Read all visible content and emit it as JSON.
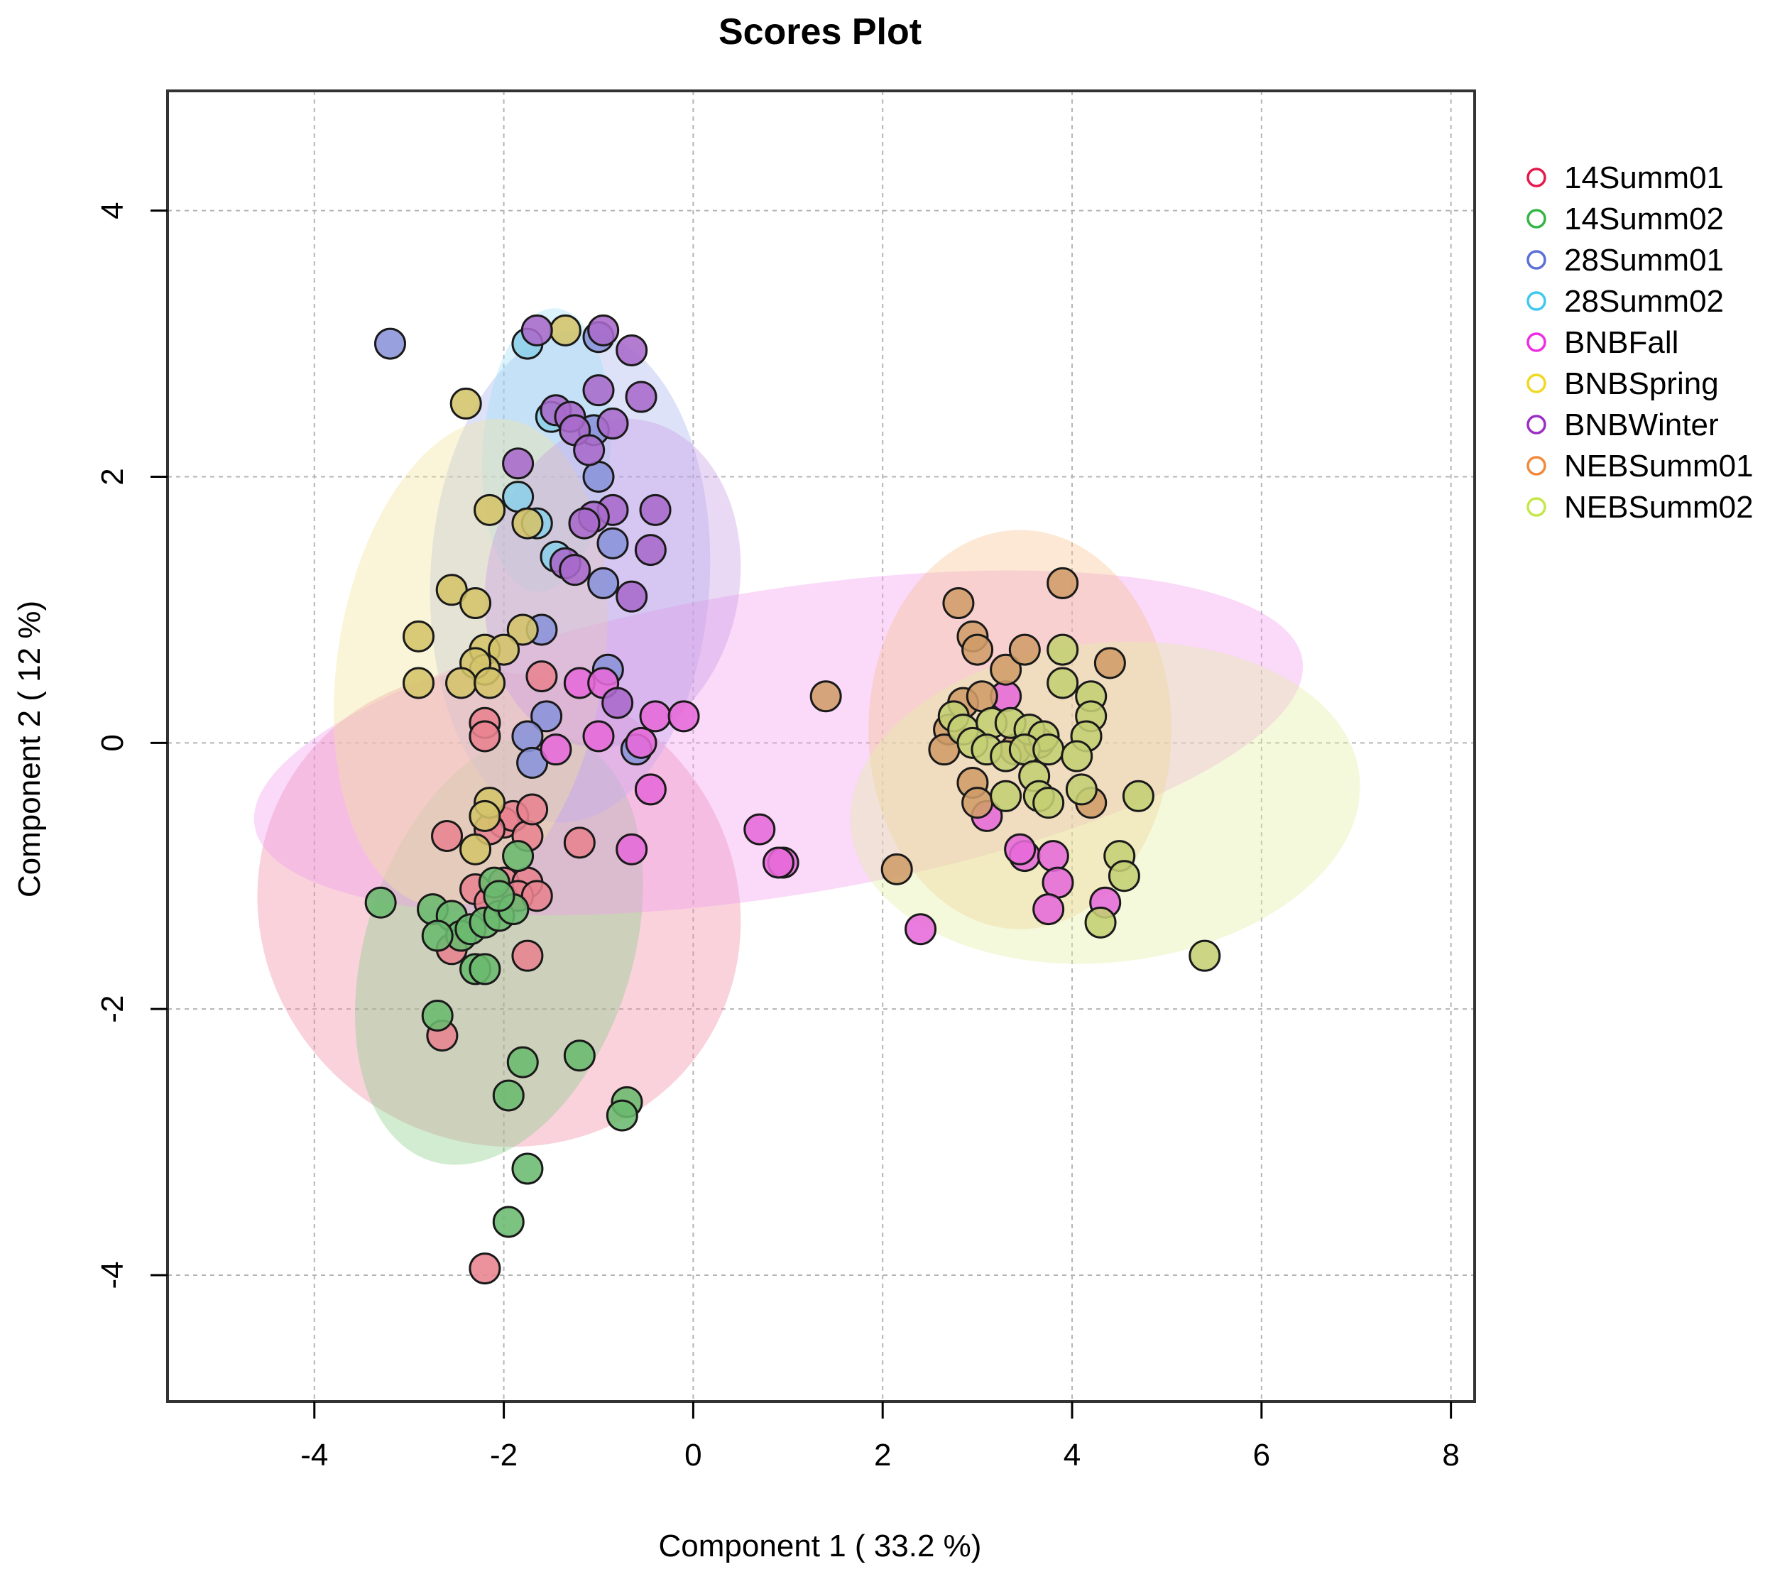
{
  "chart_data": {
    "type": "scatter",
    "title": "Scores Plot",
    "xlabel": "Component 1 ( 33.2 %)",
    "ylabel": "Component 2 ( 12 %)",
    "xlim": [
      -5.55,
      8.25
    ],
    "ylim": [
      -4.95,
      4.9
    ],
    "x_ticks": [
      -4,
      -2,
      0,
      2,
      4,
      6,
      8
    ],
    "y_ticks": [
      -4,
      -2,
      0,
      2,
      4
    ],
    "x_tick_labels": [
      "-4",
      "-2",
      "0",
      "2",
      "4",
      "6",
      "8"
    ],
    "y_tick_labels": [
      "-4",
      "-2",
      "0",
      "2",
      "4"
    ],
    "grid": true,
    "legend_position": "right",
    "legend": [
      {
        "name": "14Summ01",
        "color": "#e41a4c"
      },
      {
        "name": "14Summ02",
        "color": "#33b544"
      },
      {
        "name": "28Summ01",
        "color": "#5c6fd6"
      },
      {
        "name": "28Summ02",
        "color": "#40c8f0"
      },
      {
        "name": "BNBFall",
        "color": "#ee2ee0"
      },
      {
        "name": "BNBSpring",
        "color": "#f0d823"
      },
      {
        "name": "BNBWinter",
        "color": "#9b2ec4"
      },
      {
        "name": "NEBSumm01",
        "color": "#f08a3c"
      },
      {
        "name": "NEBSumm02",
        "color": "#c6e64a"
      }
    ],
    "ellipses": [
      {
        "group": "14Summ01",
        "cx": -2.05,
        "cy": -1.25,
        "rx": 2.6,
        "ry": 1.75,
        "angle": 36,
        "color": "#f08aa0"
      },
      {
        "group": "14Summ02",
        "cx": -2.05,
        "cy": -1.55,
        "rx": 2.35,
        "ry": 1.0,
        "angle": -72,
        "color": "#86cc86"
      },
      {
        "group": "28Summ01",
        "cx": -1.3,
        "cy": 1.25,
        "rx": 2.6,
        "ry": 1.05,
        "angle": -87,
        "color": "#a9b3ef"
      },
      {
        "group": "28Summ02",
        "cx": -1.55,
        "cy": 2.2,
        "rx": 1.5,
        "ry": 0.48,
        "angle": -86,
        "color": "#9ee0f7"
      },
      {
        "group": "BNBFall",
        "cx": 0.9,
        "cy": 0.0,
        "rx": 5.6,
        "ry": 1.15,
        "angle": -9,
        "color": "#f39af0"
      },
      {
        "group": "BNBSpring",
        "cx": -2.35,
        "cy": 0.6,
        "rx": 2.6,
        "ry": 1.0,
        "angle": -81,
        "color": "#f3e59a"
      },
      {
        "group": "BNBWinter",
        "cx": -0.85,
        "cy": 1.2,
        "rx": 1.75,
        "ry": 0.95,
        "angle": -79,
        "color": "#c79ae6"
      },
      {
        "group": "NEBSumm01",
        "cx": 3.45,
        "cy": 0.1,
        "rx": 1.6,
        "ry": 1.5,
        "angle": 0,
        "color": "#f6c28e"
      },
      {
        "group": "NEBSumm02",
        "cx": 4.35,
        "cy": -0.45,
        "rx": 2.7,
        "ry": 1.2,
        "angle": -6,
        "color": "#e2f0a4"
      }
    ],
    "series": [
      {
        "name": "14Summ01",
        "color": "#e8838f",
        "points": [
          [
            -1.6,
            0.5
          ],
          [
            -2.2,
            0.15
          ],
          [
            -2.2,
            0.05
          ],
          [
            -2.0,
            -0.6
          ],
          [
            -1.9,
            -0.55
          ],
          [
            -2.15,
            -0.65
          ],
          [
            -1.75,
            -0.7
          ],
          [
            -1.7,
            -0.5
          ],
          [
            -2.6,
            -0.7
          ],
          [
            -1.2,
            -0.75
          ],
          [
            -2.3,
            -1.1
          ],
          [
            -2.0,
            -1.05
          ],
          [
            -1.75,
            -1.05
          ],
          [
            -1.85,
            -1.15
          ],
          [
            -2.15,
            -1.2
          ],
          [
            -1.65,
            -1.15
          ],
          [
            -2.55,
            -1.55
          ],
          [
            -1.75,
            -1.6
          ],
          [
            -2.65,
            -2.2
          ],
          [
            -2.2,
            -3.95
          ]
        ]
      },
      {
        "name": "14Summ02",
        "color": "#6ab96e",
        "points": [
          [
            -3.3,
            -1.2
          ],
          [
            -2.75,
            -1.25
          ],
          [
            -2.55,
            -1.3
          ],
          [
            -2.45,
            -1.45
          ],
          [
            -2.7,
            -1.45
          ],
          [
            -2.35,
            -1.4
          ],
          [
            -2.2,
            -1.35
          ],
          [
            -2.05,
            -1.3
          ],
          [
            -1.9,
            -1.25
          ],
          [
            -2.1,
            -1.05
          ],
          [
            -1.85,
            -0.85
          ],
          [
            -2.05,
            -1.15
          ],
          [
            -2.3,
            -1.7
          ],
          [
            -2.2,
            -1.7
          ],
          [
            -2.7,
            -2.05
          ],
          [
            -1.8,
            -2.4
          ],
          [
            -1.2,
            -2.35
          ],
          [
            -1.95,
            -2.65
          ],
          [
            -0.7,
            -2.7
          ],
          [
            -0.75,
            -2.8
          ],
          [
            -1.75,
            -3.2
          ],
          [
            -1.95,
            -3.6
          ]
        ]
      },
      {
        "name": "28Summ01",
        "color": "#8a93d9",
        "points": [
          [
            -3.2,
            3.0
          ],
          [
            -1.0,
            3.05
          ],
          [
            -1.05,
            2.35
          ],
          [
            -1.0,
            2.0
          ],
          [
            -0.85,
            1.5
          ],
          [
            -0.95,
            1.2
          ],
          [
            -1.6,
            0.85
          ],
          [
            -0.9,
            0.55
          ],
          [
            -1.55,
            0.2
          ],
          [
            -1.75,
            0.05
          ],
          [
            -1.7,
            -0.15
          ],
          [
            -0.6,
            -0.05
          ]
        ]
      },
      {
        "name": "28Summ02",
        "color": "#8ccfe8",
        "points": [
          [
            -1.75,
            3.0
          ],
          [
            -1.85,
            1.85
          ],
          [
            -1.65,
            1.65
          ],
          [
            -1.5,
            2.45
          ],
          [
            -1.45,
            1.4
          ]
        ]
      },
      {
        "name": "BNBFall",
        "color": "#e66ad9",
        "points": [
          [
            -1.2,
            0.45
          ],
          [
            -0.95,
            0.45
          ],
          [
            -0.4,
            0.2
          ],
          [
            -0.1,
            0.2
          ],
          [
            -0.55,
            0.0
          ],
          [
            -1.45,
            -0.05
          ],
          [
            -1.0,
            0.05
          ],
          [
            -0.45,
            -0.35
          ],
          [
            -0.65,
            -0.8
          ],
          [
            0.7,
            -0.65
          ],
          [
            0.95,
            -0.9
          ],
          [
            0.9,
            -0.9
          ],
          [
            2.4,
            -1.4
          ],
          [
            3.1,
            -0.55
          ],
          [
            3.3,
            0.35
          ],
          [
            3.5,
            -0.85
          ],
          [
            3.45,
            -0.8
          ],
          [
            3.8,
            -0.85
          ],
          [
            3.85,
            -1.05
          ],
          [
            3.75,
            -1.25
          ],
          [
            4.35,
            -1.2
          ]
        ]
      },
      {
        "name": "BNBSpring",
        "color": "#d4c46a",
        "points": [
          [
            -1.35,
            3.1
          ],
          [
            -2.4,
            2.55
          ],
          [
            -2.15,
            1.75
          ],
          [
            -1.75,
            1.65
          ],
          [
            -2.55,
            1.15
          ],
          [
            -2.3,
            1.05
          ],
          [
            -2.9,
            0.8
          ],
          [
            -1.8,
            0.85
          ],
          [
            -2.2,
            0.7
          ],
          [
            -2.0,
            0.7
          ],
          [
            -2.2,
            0.55
          ],
          [
            -2.3,
            0.6
          ],
          [
            -2.9,
            0.45
          ],
          [
            -2.45,
            0.45
          ],
          [
            -2.15,
            0.45
          ],
          [
            -2.15,
            -0.45
          ],
          [
            -2.2,
            -0.55
          ],
          [
            -2.3,
            -0.8
          ]
        ]
      },
      {
        "name": "BNBWinter",
        "color": "#a86acb",
        "points": [
          [
            -1.65,
            3.1
          ],
          [
            -0.95,
            3.1
          ],
          [
            -0.65,
            2.95
          ],
          [
            -0.55,
            2.6
          ],
          [
            -1.0,
            2.65
          ],
          [
            -1.45,
            2.5
          ],
          [
            -1.3,
            2.45
          ],
          [
            -1.25,
            2.35
          ],
          [
            -0.85,
            2.4
          ],
          [
            -1.1,
            2.2
          ],
          [
            -1.85,
            2.1
          ],
          [
            -0.85,
            1.75
          ],
          [
            -1.05,
            1.7
          ],
          [
            -1.15,
            1.65
          ],
          [
            -0.4,
            1.75
          ],
          [
            -0.45,
            1.45
          ],
          [
            -1.35,
            1.35
          ],
          [
            -1.25,
            1.3
          ],
          [
            -0.65,
            1.1
          ],
          [
            -0.8,
            0.3
          ]
        ]
      },
      {
        "name": "NEBSumm01",
        "color": "#cf9c69",
        "points": [
          [
            1.4,
            0.35
          ],
          [
            2.15,
            -0.95
          ],
          [
            2.8,
            1.05
          ],
          [
            2.95,
            0.8
          ],
          [
            3.0,
            0.7
          ],
          [
            2.85,
            0.3
          ],
          [
            3.05,
            0.35
          ],
          [
            3.3,
            0.55
          ],
          [
            3.5,
            0.7
          ],
          [
            3.9,
            1.2
          ],
          [
            4.4,
            0.6
          ],
          [
            2.7,
            0.1
          ],
          [
            2.65,
            -0.05
          ],
          [
            2.95,
            -0.3
          ],
          [
            3.0,
            -0.45
          ],
          [
            3.4,
            -0.05
          ],
          [
            4.2,
            -0.45
          ],
          [
            3.65,
            0.0
          ]
        ]
      },
      {
        "name": "NEBSumm02",
        "color": "#c4cf73",
        "points": [
          [
            3.9,
            0.7
          ],
          [
            3.9,
            0.45
          ],
          [
            4.2,
            0.35
          ],
          [
            4.2,
            0.2
          ],
          [
            4.15,
            0.05
          ],
          [
            2.75,
            0.2
          ],
          [
            2.85,
            0.1
          ],
          [
            3.15,
            0.15
          ],
          [
            3.35,
            0.15
          ],
          [
            3.55,
            0.1
          ],
          [
            3.7,
            0.05
          ],
          [
            2.95,
            0.0
          ],
          [
            3.1,
            -0.05
          ],
          [
            3.3,
            -0.1
          ],
          [
            3.5,
            -0.05
          ],
          [
            3.75,
            -0.05
          ],
          [
            4.05,
            -0.1
          ],
          [
            3.6,
            -0.25
          ],
          [
            3.3,
            -0.4
          ],
          [
            3.65,
            -0.4
          ],
          [
            4.1,
            -0.35
          ],
          [
            4.7,
            -0.4
          ],
          [
            4.5,
            -0.85
          ],
          [
            4.55,
            -1.0
          ],
          [
            4.3,
            -1.35
          ],
          [
            5.4,
            -1.6
          ],
          [
            3.75,
            -0.45
          ]
        ]
      }
    ]
  }
}
